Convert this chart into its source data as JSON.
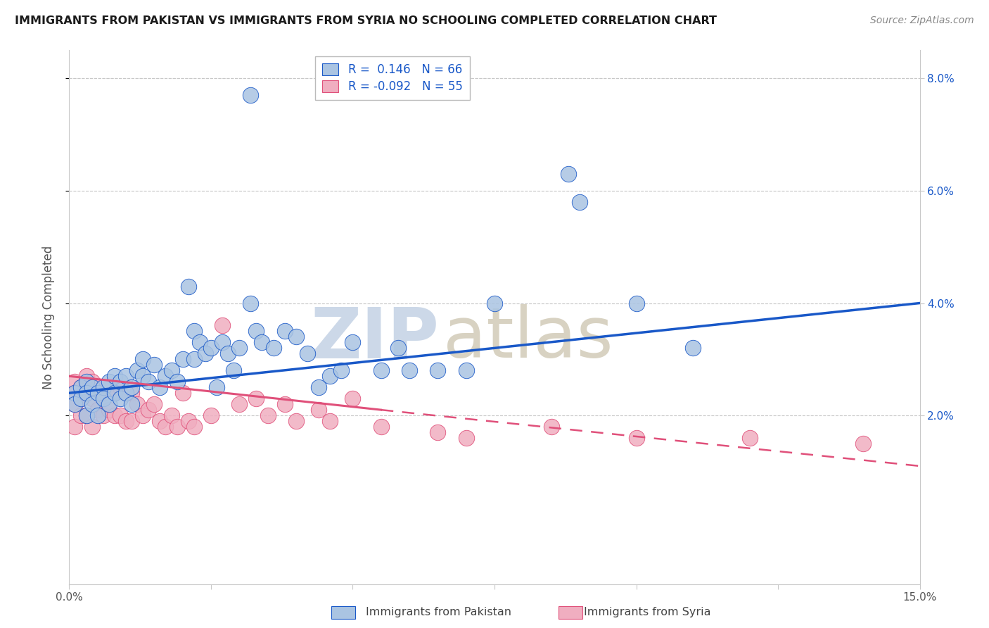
{
  "title": "IMMIGRANTS FROM PAKISTAN VS IMMIGRANTS FROM SYRIA NO SCHOOLING COMPLETED CORRELATION CHART",
  "source": "Source: ZipAtlas.com",
  "ylabel_label": "No Schooling Completed",
  "xlim": [
    0.0,
    0.15
  ],
  "ylim": [
    -0.01,
    0.085
  ],
  "legend_pakistan": "Immigrants from Pakistan",
  "legend_syria": "Immigrants from Syria",
  "r_pakistan": "0.146",
  "n_pakistan": "66",
  "r_syria": "-0.092",
  "n_syria": "55",
  "color_pakistan": "#aac4e2",
  "color_syria": "#f0aec0",
  "trendline_pakistan_color": "#1958c8",
  "trendline_syria_color": "#e0507a",
  "background_color": "#ffffff",
  "grid_color": "#c8c8c8",
  "watermark_zip_color": "#ccd8e8",
  "watermark_atlas_color": "#c8c0a8",
  "pak_trendline": [
    0.024,
    0.04
  ],
  "syr_trendline_solid": [
    0.027,
    0.021
  ],
  "syr_trendline_dashed": [
    0.021,
    0.011
  ],
  "syr_solid_xrange": [
    0.0,
    0.055
  ],
  "syr_dashed_xrange": [
    0.055,
    0.15
  ],
  "pakistan_x": [
    0.001,
    0.001,
    0.002,
    0.002,
    0.003,
    0.003,
    0.003,
    0.004,
    0.004,
    0.005,
    0.005,
    0.006,
    0.006,
    0.007,
    0.007,
    0.008,
    0.008,
    0.009,
    0.009,
    0.01,
    0.01,
    0.011,
    0.011,
    0.012,
    0.013,
    0.013,
    0.014,
    0.015,
    0.016,
    0.017,
    0.018,
    0.019,
    0.02,
    0.021,
    0.022,
    0.022,
    0.023,
    0.024,
    0.025,
    0.026,
    0.027,
    0.028,
    0.029,
    0.03,
    0.032,
    0.033,
    0.034,
    0.036,
    0.038,
    0.04,
    0.042,
    0.044,
    0.046,
    0.05,
    0.055,
    0.058,
    0.06,
    0.065,
    0.07,
    0.075,
    0.088,
    0.09,
    0.1,
    0.11,
    0.032,
    0.048
  ],
  "pakistan_y": [
    0.024,
    0.022,
    0.025,
    0.023,
    0.026,
    0.024,
    0.02,
    0.025,
    0.022,
    0.024,
    0.02,
    0.025,
    0.023,
    0.026,
    0.022,
    0.027,
    0.024,
    0.026,
    0.023,
    0.027,
    0.024,
    0.025,
    0.022,
    0.028,
    0.03,
    0.027,
    0.026,
    0.029,
    0.025,
    0.027,
    0.028,
    0.026,
    0.03,
    0.043,
    0.035,
    0.03,
    0.033,
    0.031,
    0.032,
    0.025,
    0.033,
    0.031,
    0.028,
    0.032,
    0.04,
    0.035,
    0.033,
    0.032,
    0.035,
    0.034,
    0.031,
    0.025,
    0.027,
    0.033,
    0.028,
    0.032,
    0.028,
    0.028,
    0.028,
    0.04,
    0.063,
    0.058,
    0.04,
    0.032,
    0.077,
    0.028
  ],
  "syria_x": [
    0.001,
    0.001,
    0.001,
    0.001,
    0.002,
    0.002,
    0.002,
    0.003,
    0.003,
    0.003,
    0.004,
    0.004,
    0.004,
    0.005,
    0.005,
    0.006,
    0.006,
    0.007,
    0.007,
    0.008,
    0.008,
    0.009,
    0.009,
    0.01,
    0.01,
    0.011,
    0.011,
    0.012,
    0.013,
    0.014,
    0.015,
    0.016,
    0.017,
    0.018,
    0.019,
    0.02,
    0.021,
    0.022,
    0.025,
    0.027,
    0.03,
    0.033,
    0.035,
    0.038,
    0.04,
    0.044,
    0.046,
    0.05,
    0.055,
    0.065,
    0.07,
    0.085,
    0.1,
    0.12,
    0.14
  ],
  "syria_y": [
    0.026,
    0.024,
    0.022,
    0.018,
    0.025,
    0.023,
    0.02,
    0.027,
    0.024,
    0.02,
    0.026,
    0.023,
    0.018,
    0.025,
    0.021,
    0.024,
    0.02,
    0.025,
    0.021,
    0.024,
    0.02,
    0.025,
    0.02,
    0.024,
    0.019,
    0.024,
    0.019,
    0.022,
    0.02,
    0.021,
    0.022,
    0.019,
    0.018,
    0.02,
    0.018,
    0.024,
    0.019,
    0.018,
    0.02,
    0.036,
    0.022,
    0.023,
    0.02,
    0.022,
    0.019,
    0.021,
    0.019,
    0.023,
    0.018,
    0.017,
    0.016,
    0.018,
    0.016,
    0.016,
    0.015
  ]
}
